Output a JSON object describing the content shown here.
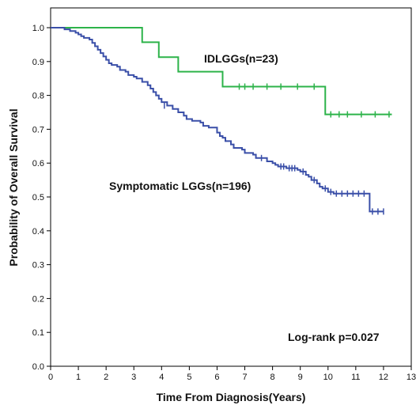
{
  "chart_data": {
    "type": "line",
    "title": "",
    "xlabel": "Time From Diagnosis(Years)",
    "ylabel": "Probability of Overall Survival",
    "xlim": [
      0,
      13
    ],
    "ylim": [
      0.0,
      1.0
    ],
    "x_ticks": [
      "0",
      "1",
      "2",
      "3",
      "4",
      "5",
      "6",
      "7",
      "8",
      "9",
      "10",
      "11",
      "12",
      "13"
    ],
    "y_ticks": [
      "0.0",
      "0.1",
      "0.2",
      "0.3",
      "0.4",
      "0.5",
      "0.6",
      "0.7",
      "0.8",
      "0.9",
      "1.0"
    ],
    "grid": false,
    "step": true,
    "series": [
      {
        "name": "IDLGGs(n=23)",
        "color": "#2db34a",
        "points": [
          [
            0,
            1.0
          ],
          [
            3.3,
            1.0
          ],
          [
            3.3,
            0.957
          ],
          [
            3.9,
            0.957
          ],
          [
            3.9,
            0.913
          ],
          [
            4.6,
            0.913
          ],
          [
            4.6,
            0.87
          ],
          [
            6.2,
            0.87
          ],
          [
            6.2,
            0.826
          ],
          [
            9.9,
            0.826
          ],
          [
            9.9,
            0.744
          ],
          [
            12.3,
            0.744
          ]
        ],
        "censored": [
          [
            6.8,
            0.826
          ],
          [
            7.0,
            0.826
          ],
          [
            7.3,
            0.826
          ],
          [
            7.8,
            0.826
          ],
          [
            8.3,
            0.826
          ],
          [
            8.9,
            0.826
          ],
          [
            9.5,
            0.826
          ],
          [
            10.1,
            0.744
          ],
          [
            10.4,
            0.744
          ],
          [
            10.7,
            0.744
          ],
          [
            11.2,
            0.744
          ],
          [
            11.7,
            0.744
          ],
          [
            12.2,
            0.744
          ]
        ]
      },
      {
        "name": "Symptomatic LGGs(n=196)",
        "color": "#3a4fa8",
        "points": [
          [
            0,
            1.0
          ],
          [
            0.5,
            1.0
          ],
          [
            0.5,
            0.995
          ],
          [
            0.7,
            0.99
          ],
          [
            0.9,
            0.985
          ],
          [
            1.0,
            0.98
          ],
          [
            1.1,
            0.975
          ],
          [
            1.2,
            0.97
          ],
          [
            1.4,
            0.965
          ],
          [
            1.5,
            0.955
          ],
          [
            1.6,
            0.945
          ],
          [
            1.7,
            0.935
          ],
          [
            1.8,
            0.925
          ],
          [
            1.9,
            0.915
          ],
          [
            2.0,
            0.905
          ],
          [
            2.1,
            0.895
          ],
          [
            2.2,
            0.89
          ],
          [
            2.4,
            0.885
          ],
          [
            2.5,
            0.875
          ],
          [
            2.7,
            0.87
          ],
          [
            2.8,
            0.86
          ],
          [
            3.0,
            0.855
          ],
          [
            3.1,
            0.85
          ],
          [
            3.3,
            0.84
          ],
          [
            3.5,
            0.83
          ],
          [
            3.6,
            0.82
          ],
          [
            3.7,
            0.81
          ],
          [
            3.8,
            0.8
          ],
          [
            3.9,
            0.79
          ],
          [
            4.0,
            0.78
          ],
          [
            4.2,
            0.77
          ],
          [
            4.4,
            0.76
          ],
          [
            4.6,
            0.75
          ],
          [
            4.8,
            0.74
          ],
          [
            4.9,
            0.73
          ],
          [
            5.1,
            0.725
          ],
          [
            5.4,
            0.72
          ],
          [
            5.5,
            0.71
          ],
          [
            5.7,
            0.705
          ],
          [
            6.0,
            0.69
          ],
          [
            6.1,
            0.68
          ],
          [
            6.2,
            0.675
          ],
          [
            6.3,
            0.665
          ],
          [
            6.5,
            0.655
          ],
          [
            6.6,
            0.645
          ],
          [
            6.9,
            0.64
          ],
          [
            7.0,
            0.63
          ],
          [
            7.3,
            0.625
          ],
          [
            7.4,
            0.615
          ],
          [
            7.8,
            0.605
          ],
          [
            8.0,
            0.6
          ],
          [
            8.1,
            0.595
          ],
          [
            8.2,
            0.59
          ],
          [
            8.5,
            0.585
          ],
          [
            8.9,
            0.58
          ],
          [
            9.0,
            0.575
          ],
          [
            9.2,
            0.565
          ],
          [
            9.3,
            0.56
          ],
          [
            9.4,
            0.55
          ],
          [
            9.6,
            0.54
          ],
          [
            9.7,
            0.53
          ],
          [
            9.8,
            0.525
          ],
          [
            10.0,
            0.515
          ],
          [
            10.2,
            0.51
          ],
          [
            11.5,
            0.51
          ],
          [
            11.5,
            0.457
          ],
          [
            12.0,
            0.457
          ]
        ],
        "censored": [
          [
            4.1,
            0.77
          ],
          [
            7.6,
            0.615
          ],
          [
            8.3,
            0.59
          ],
          [
            8.4,
            0.59
          ],
          [
            8.6,
            0.585
          ],
          [
            8.7,
            0.585
          ],
          [
            8.8,
            0.585
          ],
          [
            9.1,
            0.575
          ],
          [
            9.5,
            0.55
          ],
          [
            9.9,
            0.525
          ],
          [
            10.1,
            0.515
          ],
          [
            10.3,
            0.51
          ],
          [
            10.5,
            0.51
          ],
          [
            10.7,
            0.51
          ],
          [
            10.9,
            0.51
          ],
          [
            11.1,
            0.51
          ],
          [
            11.3,
            0.51
          ],
          [
            11.6,
            0.457
          ],
          [
            11.8,
            0.457
          ],
          [
            12.0,
            0.457
          ]
        ]
      }
    ],
    "annotations": [
      "IDLGGs(n=23)",
      "Symptomatic LGGs(n=196)",
      "Log-rank p=0.027"
    ]
  }
}
